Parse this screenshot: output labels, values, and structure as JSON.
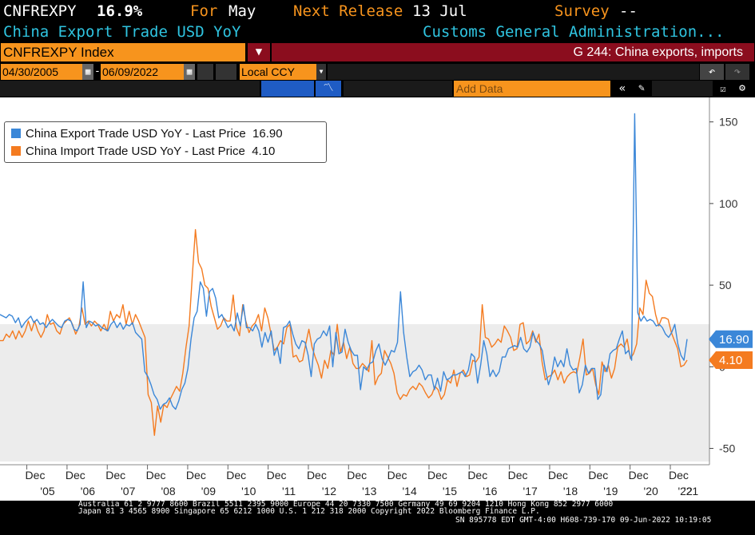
{
  "header": {
    "ticker": "CNFREXPY",
    "last_value": "16.9%",
    "for_label": "For",
    "for_value": "May",
    "next_release_label": "Next Release",
    "next_release_value": "13 Jul",
    "survey_label": "Survey",
    "survey_value": "--",
    "series_title": "China Export Trade USD YoY",
    "source": "Customs General Administration..."
  },
  "toolbar": {
    "security": "CNFREXPY Index",
    "function_title": "G 244: China exports, imports",
    "start_date": "04/30/2005",
    "end_date": "06/09/2022",
    "currency": "Local CCY",
    "add_data_placeholder": "Add Data"
  },
  "colors": {
    "export": "#3b87d8",
    "import": "#f47b20",
    "header_orange": "#f7941d",
    "title_bar": "#8b0d1e",
    "cyan": "#2fc4e0"
  },
  "icons": [
    "dropdown-arrow-icon",
    "calendar-icon",
    "line-chart-icon",
    "double-chevron-left-icon",
    "pencil-icon",
    "undo-icon",
    "redo-icon",
    "edit-icon",
    "gear-icon"
  ],
  "legend": {
    "export_label": "China Export Trade USD YoY - Last Price",
    "export_value": "16.90",
    "import_label": "China Import Trade USD YoY - Last Price",
    "import_value": "4.10"
  },
  "footer": {
    "line1": "Australia 61 2 9777 8600 Brazil 5511 2395 9000 Europe 44 20 7330 7500 Germany 49 69 9204 1210 Hong Kong 852 2977 6000",
    "line2": "Japan 81 3 4565 8900        Singapore 65 6212 1000        U.S. 1 212 318 2000            Copyright 2022 Bloomberg Finance L.P.",
    "line3": "SN 895778 EDT  GMT-4:00 H608-739-170 09-Jun-2022 10:19:05"
  },
  "chart_data": {
    "type": "line",
    "x_start": "2005-04",
    "x_end": "2022-05",
    "frequency": "monthly",
    "ylim": [
      -60,
      165
    ],
    "yticks": [
      -50,
      0,
      50,
      100,
      150
    ],
    "grid": false,
    "legend_position": "top-left",
    "x_tick_labels": [
      {
        "month": "Dec",
        "year": "'05"
      },
      {
        "month": "Dec",
        "year": "'06"
      },
      {
        "month": "Dec",
        "year": "'07"
      },
      {
        "month": "Dec",
        "year": "'08"
      },
      {
        "month": "Dec",
        "year": "'09"
      },
      {
        "month": "Dec",
        "year": "'10"
      },
      {
        "month": "Dec",
        "year": "'11"
      },
      {
        "month": "Dec",
        "year": "'12"
      },
      {
        "month": "Dec",
        "year": "'13"
      },
      {
        "month": "Dec",
        "year": "'14"
      },
      {
        "month": "Dec",
        "year": "'15"
      },
      {
        "month": "Dec",
        "year": "'16"
      },
      {
        "month": "Dec",
        "year": "'17"
      },
      {
        "month": "Dec",
        "year": "'18"
      },
      {
        "month": "Dec",
        "year": "'19"
      },
      {
        "month": "Dec",
        "year": "'20"
      },
      {
        "month": "Dec",
        "year": "'21"
      },
      {
        "month": "",
        "year": "'22"
      }
    ],
    "series": [
      {
        "name": "China Export Trade USD YoY - Last Price",
        "last": 16.9,
        "values": [
          32,
          31,
          30,
          32,
          31,
          27,
          30,
          24,
          27,
          29,
          31,
          27,
          29,
          26,
          27,
          24,
          27,
          29,
          27,
          25,
          24,
          28,
          29,
          28,
          23,
          22,
          26,
          52,
          24,
          28,
          27,
          25,
          26,
          24,
          23,
          22,
          26,
          28,
          24,
          27,
          23,
          26,
          25,
          27,
          21,
          19,
          17,
          -3,
          -6,
          -11,
          -17,
          -20,
          -26,
          -23,
          -22,
          -19,
          -24,
          -26,
          -21,
          -14,
          -10,
          -1,
          17,
          30,
          34,
          52,
          48,
          31,
          46,
          48,
          42,
          30,
          32,
          28,
          24,
          26,
          22,
          33,
          25,
          38,
          24,
          24,
          22,
          26,
          22,
          12,
          21,
          15,
          22,
          7,
          12,
          2,
          24,
          25,
          28,
          20,
          14,
          11,
          16,
          15,
          7,
          -6,
          14,
          17,
          18,
          22,
          19,
          25,
          0,
          21,
          8,
          9,
          23,
          15,
          10,
          7,
          7,
          -14,
          0,
          -2,
          2,
          3,
          10,
          14,
          5,
          1,
          5,
          10,
          9,
          15,
          46,
          21,
          6,
          -6,
          -3,
          -2,
          1,
          -2,
          -8,
          -5,
          -5,
          -14,
          -7,
          -15,
          -3,
          -8,
          -7,
          -5,
          -5,
          -4,
          -3,
          -6,
          -2,
          8,
          6,
          -10,
          1,
          16,
          8,
          -6,
          -2,
          -6,
          -3,
          6,
          6,
          11,
          12,
          13,
          12,
          18,
          11,
          9,
          12,
          21,
          16,
          14,
          10,
          -2,
          -11,
          -5,
          6,
          0,
          4,
          0,
          11,
          1,
          -2,
          -1,
          -16,
          -11,
          1,
          -4,
          -1,
          -1,
          -20,
          -17,
          1,
          -3,
          8,
          10,
          11,
          17,
          22,
          8,
          10,
          4,
          155,
          33,
          28,
          31,
          28,
          29,
          28,
          25,
          26,
          24,
          20,
          18,
          21,
          26,
          14,
          7,
          4,
          17
        ]
      },
      {
        "name": "China Import Trade USD YoY - Last Price",
        "last": 4.1,
        "values": [
          16,
          16,
          20,
          18,
          22,
          17,
          22,
          18,
          22,
          28,
          22,
          28,
          22,
          18,
          22,
          32,
          26,
          27,
          22,
          20,
          26,
          28,
          30,
          26,
          20,
          24,
          36,
          26,
          28,
          25,
          28,
          26,
          22,
          26,
          22,
          34,
          28,
          32,
          30,
          38,
          26,
          34,
          26,
          32,
          28,
          23,
          18,
          -17,
          -22,
          -42,
          -24,
          -34,
          -23,
          -25,
          -20,
          -16,
          -12,
          -15,
          -4,
          12,
          25,
          55,
          84,
          64,
          60,
          50,
          48,
          37,
          30,
          23,
          25,
          30,
          28,
          28,
          44,
          24,
          19,
          38,
          28,
          21,
          25,
          27,
          32,
          22,
          36,
          30,
          20,
          10,
          12,
          16,
          14,
          24,
          26,
          6,
          7,
          3,
          4,
          14,
          23,
          12,
          6,
          1,
          -7,
          4,
          -1,
          10,
          7,
          26,
          9,
          15,
          5,
          12,
          2,
          -1,
          -1,
          2,
          0,
          -3,
          16,
          -11,
          -6,
          -4,
          10,
          6,
          2,
          -4,
          -16,
          -20,
          -17,
          -18,
          -14,
          -12,
          -14,
          -10,
          -12,
          -16,
          -19,
          -17,
          -12,
          -14,
          -20,
          -17,
          -8,
          -10,
          -2,
          -12,
          -4,
          -2,
          -6,
          -5,
          4,
          3,
          6,
          38,
          18,
          17,
          12,
          14,
          17,
          15,
          25,
          22,
          18,
          10,
          11,
          26,
          27,
          14,
          16,
          22,
          15,
          20,
          3,
          -8,
          -6,
          -5,
          -2,
          -8,
          -3,
          -10,
          -6,
          -4,
          -3,
          -4,
          6,
          17,
          -5,
          -4,
          -1,
          -11,
          -17,
          3,
          -3,
          1,
          -7,
          -1,
          12,
          14,
          12,
          17,
          5,
          8,
          14,
          36,
          32,
          53,
          45,
          43,
          32,
          25,
          30,
          30,
          29,
          21,
          16,
          11,
          0,
          1,
          4.1
        ]
      }
    ]
  }
}
